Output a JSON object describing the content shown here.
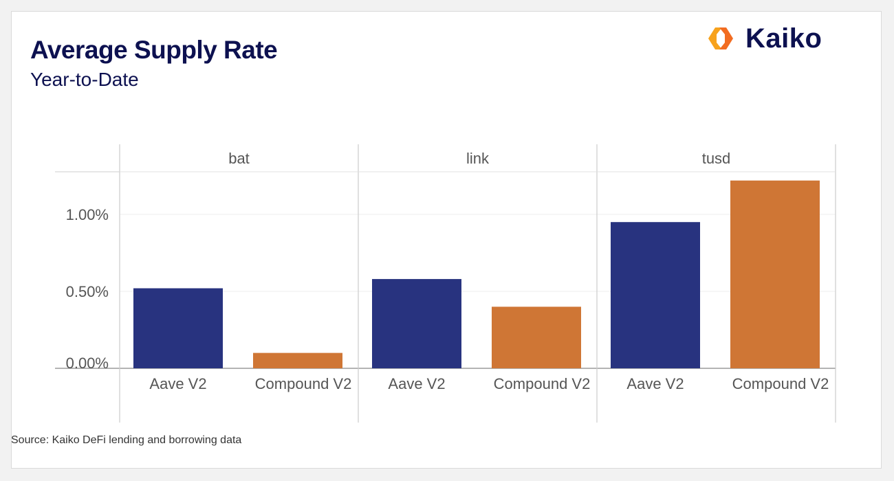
{
  "header": {
    "title": "Average Supply Rate",
    "subtitle": "Year-to-Date"
  },
  "logo": {
    "text": "Kaiko",
    "icon": "kaiko-logo-icon"
  },
  "footer": {
    "source": "Source: Kaiko DeFi lending and borrowing data"
  },
  "colors": {
    "aave": "#28337f",
    "compound": "#cf7635",
    "title": "#0d1150"
  },
  "chart_data": {
    "type": "bar",
    "facets": [
      "bat",
      "link",
      "tusd"
    ],
    "categories": [
      "Aave V2",
      "Compound V2"
    ],
    "series": [
      {
        "facet": "bat",
        "values": [
          0.52,
          0.1
        ]
      },
      {
        "facet": "link",
        "values": [
          0.58,
          0.4
        ]
      },
      {
        "facet": "tusd",
        "values": [
          0.95,
          1.22
        ]
      }
    ],
    "yticks": [
      "0.00%",
      "0.50%",
      "1.00%"
    ],
    "ytick_values": [
      0,
      0.5,
      1.0
    ],
    "ylim": [
      0,
      1.28
    ],
    "grid": true
  }
}
